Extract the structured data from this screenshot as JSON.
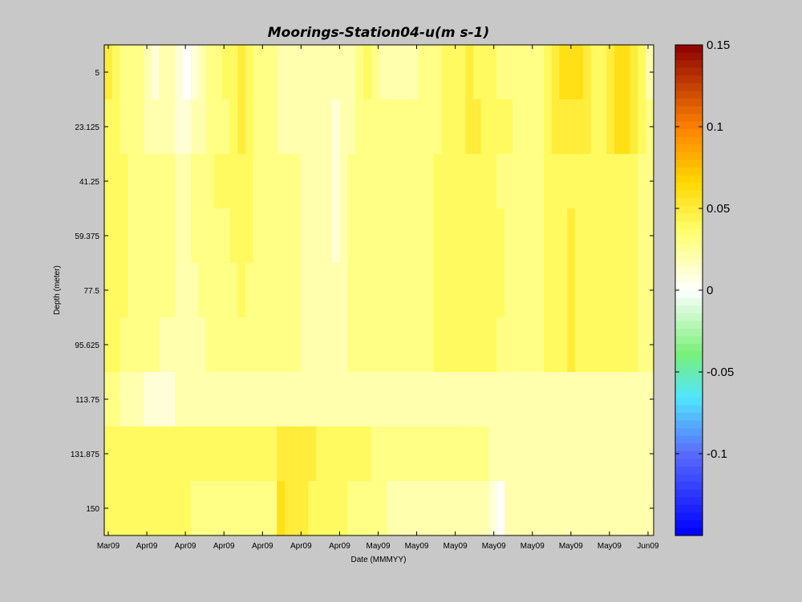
{
  "chart_data": {
    "type": "heatmap",
    "title": "Moorings-Station04-u(m s-1)",
    "xlabel": "Date (MMMYY)",
    "ylabel": "Depth (meter)",
    "x_ticks": [
      "Mar09",
      "Apr09",
      "Apr09",
      "Apr09",
      "Apr09",
      "Apr09",
      "Apr09",
      "May09",
      "May09",
      "May09",
      "May09",
      "May09",
      "May09",
      "May09",
      "Jun09"
    ],
    "y_ticks": [
      "5",
      "23.125",
      "41.25",
      "59.375",
      "77.5",
      "95.625",
      "113.75",
      "131.875",
      "150"
    ],
    "depths": [
      5,
      23.125,
      41.25,
      59.375,
      77.5,
      95.625,
      113.75,
      131.875,
      150
    ],
    "colorbar": {
      "min": -0.15,
      "max": 0.15,
      "ticks": [
        "0.15",
        "0.1",
        "0.05",
        "0",
        "-0.05",
        "-0.1"
      ],
      "tick_values": [
        0.15,
        0.1,
        0.05,
        0,
        -0.05,
        -0.1
      ],
      "colormap": "jet-with-white-center"
    },
    "time_steps": 70,
    "values": [
      [
        0.05,
        0.04,
        0.03,
        0.03,
        0.03,
        0.02,
        0.01,
        0.02,
        0.02,
        0.01,
        0.0,
        0.01,
        0.02,
        0.03,
        0.03,
        0.04,
        0.04,
        0.05,
        0.04,
        0.03,
        0.03,
        0.03,
        0.02,
        0.02,
        0.02,
        0.02,
        0.02,
        0.02,
        0.02,
        0.02,
        0.02,
        0.02,
        0.03,
        0.04,
        0.03,
        0.02,
        0.02,
        0.02,
        0.02,
        0.02,
        0.03,
        0.03,
        0.03,
        0.04,
        0.04,
        0.04,
        0.05,
        0.04,
        0.04,
        0.04,
        0.03,
        0.03,
        0.03,
        0.03,
        0.03,
        0.03,
        0.04,
        0.05,
        0.06,
        0.06,
        0.06,
        0.05,
        0.04,
        0.04,
        0.05,
        0.06,
        0.06,
        0.05,
        0.04,
        0.02
      ],
      [
        0.04,
        0.04,
        0.03,
        0.03,
        0.03,
        0.02,
        0.02,
        0.02,
        0.02,
        0.01,
        0.01,
        0.02,
        0.02,
        0.03,
        0.03,
        0.03,
        0.04,
        0.05,
        0.04,
        0.03,
        0.03,
        0.03,
        0.02,
        0.02,
        0.02,
        0.02,
        0.02,
        0.02,
        0.02,
        0.01,
        0.02,
        0.02,
        0.03,
        0.03,
        0.03,
        0.03,
        0.03,
        0.03,
        0.03,
        0.03,
        0.03,
        0.03,
        0.03,
        0.04,
        0.04,
        0.04,
        0.05,
        0.05,
        0.04,
        0.04,
        0.04,
        0.04,
        0.03,
        0.03,
        0.03,
        0.03,
        0.04,
        0.05,
        0.05,
        0.05,
        0.05,
        0.05,
        0.04,
        0.04,
        0.05,
        0.06,
        0.06,
        0.05,
        0.04,
        0.03
      ],
      [
        0.04,
        0.04,
        0.04,
        0.03,
        0.03,
        0.03,
        0.03,
        0.03,
        0.03,
        0.02,
        0.02,
        0.03,
        0.03,
        0.03,
        0.04,
        0.04,
        0.04,
        0.04,
        0.04,
        0.03,
        0.03,
        0.03,
        0.03,
        0.03,
        0.03,
        0.02,
        0.02,
        0.02,
        0.02,
        0.01,
        0.02,
        0.03,
        0.03,
        0.03,
        0.03,
        0.03,
        0.03,
        0.03,
        0.03,
        0.03,
        0.03,
        0.03,
        0.04,
        0.04,
        0.04,
        0.04,
        0.04,
        0.04,
        0.04,
        0.04,
        0.03,
        0.03,
        0.03,
        0.03,
        0.03,
        0.03,
        0.04,
        0.04,
        0.04,
        0.04,
        0.04,
        0.04,
        0.04,
        0.04,
        0.04,
        0.04,
        0.04,
        0.04,
        0.03,
        0.03
      ],
      [
        0.04,
        0.04,
        0.04,
        0.03,
        0.03,
        0.03,
        0.03,
        0.03,
        0.03,
        0.02,
        0.02,
        0.03,
        0.03,
        0.03,
        0.03,
        0.03,
        0.04,
        0.04,
        0.04,
        0.03,
        0.03,
        0.03,
        0.03,
        0.03,
        0.03,
        0.02,
        0.02,
        0.02,
        0.02,
        0.01,
        0.02,
        0.03,
        0.03,
        0.03,
        0.03,
        0.03,
        0.03,
        0.03,
        0.03,
        0.03,
        0.03,
        0.03,
        0.04,
        0.04,
        0.04,
        0.04,
        0.04,
        0.04,
        0.04,
        0.04,
        0.04,
        0.03,
        0.03,
        0.03,
        0.03,
        0.03,
        0.04,
        0.04,
        0.04,
        0.05,
        0.04,
        0.04,
        0.04,
        0.04,
        0.04,
        0.04,
        0.04,
        0.04,
        0.03,
        0.03
      ],
      [
        0.04,
        0.04,
        0.04,
        0.03,
        0.03,
        0.03,
        0.03,
        0.03,
        0.03,
        0.02,
        0.02,
        0.02,
        0.03,
        0.03,
        0.03,
        0.03,
        0.03,
        0.04,
        0.03,
        0.03,
        0.03,
        0.03,
        0.03,
        0.03,
        0.03,
        0.02,
        0.02,
        0.02,
        0.02,
        0.02,
        0.02,
        0.03,
        0.03,
        0.03,
        0.03,
        0.03,
        0.03,
        0.03,
        0.03,
        0.03,
        0.03,
        0.03,
        0.04,
        0.04,
        0.04,
        0.04,
        0.04,
        0.04,
        0.04,
        0.04,
        0.04,
        0.03,
        0.03,
        0.03,
        0.03,
        0.03,
        0.04,
        0.04,
        0.04,
        0.05,
        0.04,
        0.04,
        0.04,
        0.04,
        0.04,
        0.04,
        0.04,
        0.04,
        0.03,
        0.03
      ],
      [
        0.04,
        0.04,
        0.03,
        0.03,
        0.03,
        0.03,
        0.03,
        0.02,
        0.02,
        0.02,
        0.02,
        0.02,
        0.02,
        0.03,
        0.03,
        0.03,
        0.03,
        0.03,
        0.03,
        0.03,
        0.03,
        0.03,
        0.03,
        0.03,
        0.03,
        0.02,
        0.02,
        0.02,
        0.02,
        0.02,
        0.02,
        0.03,
        0.03,
        0.03,
        0.03,
        0.03,
        0.03,
        0.03,
        0.03,
        0.03,
        0.03,
        0.03,
        0.04,
        0.04,
        0.04,
        0.04,
        0.04,
        0.04,
        0.04,
        0.04,
        0.03,
        0.03,
        0.03,
        0.03,
        0.03,
        0.03,
        0.04,
        0.04,
        0.04,
        0.05,
        0.04,
        0.04,
        0.04,
        0.04,
        0.04,
        0.04,
        0.04,
        0.04,
        0.03,
        0.03
      ],
      [
        0.03,
        0.03,
        0.02,
        0.02,
        0.02,
        0.01,
        0.01,
        0.01,
        0.01,
        0.02,
        0.02,
        0.02,
        0.02,
        0.02,
        0.02,
        0.02,
        0.02,
        0.02,
        0.02,
        0.02,
        0.02,
        0.02,
        0.02,
        0.02,
        0.02,
        0.02,
        0.02,
        0.02,
        0.02,
        0.02,
        0.02,
        0.02,
        0.02,
        0.02,
        0.02,
        0.02,
        0.02,
        0.02,
        0.02,
        0.02,
        0.02,
        0.02,
        0.02,
        0.02,
        0.02,
        0.02,
        0.02,
        0.02,
        0.02,
        0.02,
        0.02,
        0.02,
        0.02,
        0.02,
        0.02,
        0.02,
        0.02,
        0.02,
        0.02,
        0.02,
        0.02,
        0.02,
        0.02,
        0.02,
        0.02,
        0.02,
        0.02,
        0.02,
        0.02,
        0.02
      ],
      [
        0.04,
        0.04,
        0.04,
        0.04,
        0.04,
        0.04,
        0.04,
        0.04,
        0.04,
        0.04,
        0.04,
        0.04,
        0.04,
        0.04,
        0.04,
        0.04,
        0.04,
        0.04,
        0.04,
        0.04,
        0.04,
        0.04,
        0.05,
        0.05,
        0.05,
        0.05,
        0.05,
        0.04,
        0.04,
        0.04,
        0.04,
        0.04,
        0.04,
        0.04,
        0.03,
        0.03,
        0.03,
        0.03,
        0.03,
        0.03,
        0.03,
        0.03,
        0.03,
        0.03,
        0.03,
        0.03,
        0.03,
        0.03,
        0.03,
        0.02,
        0.02,
        0.02,
        0.02,
        0.02,
        0.02,
        0.02,
        0.02,
        0.02,
        0.02,
        0.02,
        0.02,
        0.02,
        0.02,
        0.02,
        0.02,
        0.02,
        0.02,
        0.02,
        0.02,
        0.02
      ],
      [
        0.04,
        0.04,
        0.04,
        0.04,
        0.04,
        0.04,
        0.04,
        0.04,
        0.04,
        0.04,
        0.04,
        0.03,
        0.03,
        0.03,
        0.03,
        0.03,
        0.03,
        0.03,
        0.03,
        0.03,
        0.03,
        0.03,
        0.06,
        0.05,
        0.05,
        0.05,
        0.04,
        0.04,
        0.04,
        0.04,
        0.04,
        0.03,
        0.03,
        0.03,
        0.03,
        0.03,
        0.02,
        0.02,
        0.02,
        0.02,
        0.02,
        0.02,
        0.02,
        0.02,
        0.02,
        0.02,
        0.02,
        0.02,
        0.02,
        0.01,
        0.0,
        0.02,
        0.02,
        0.02,
        0.02,
        0.02,
        0.02,
        0.02,
        0.02,
        0.02,
        0.02,
        0.02,
        0.02,
        0.02,
        0.02,
        0.02,
        0.02,
        0.02,
        0.02,
        0.02
      ]
    ]
  }
}
